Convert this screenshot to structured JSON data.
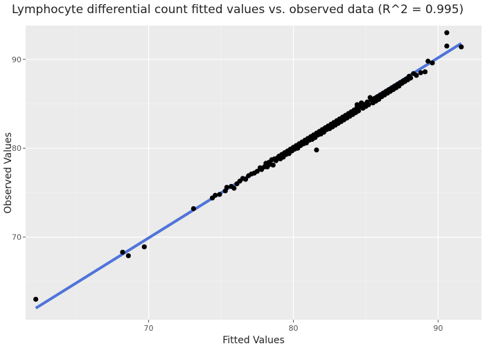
{
  "chart_data": {
    "type": "scatter",
    "title": "Lymphocyte differential count  fitted values vs. observed data (R^2 = 0.995)",
    "xlabel": "Fitted Values",
    "ylabel": "Observed Values",
    "xlim": [
      61.5,
      93.0
    ],
    "ylim": [
      60.7,
      93.8
    ],
    "xticks": [
      70,
      80,
      90
    ],
    "yticks": [
      70,
      80,
      90
    ],
    "grid": true,
    "background": "#ebebeb",
    "point_color": "#000000",
    "fit_color": "#4f74d9",
    "fit_line": {
      "x": [
        62.2,
        91.6
      ],
      "y": [
        62.0,
        91.8
      ]
    },
    "points": [
      [
        62.2,
        63.0
      ],
      [
        68.2,
        68.3
      ],
      [
        68.6,
        67.9
      ],
      [
        69.7,
        68.9
      ],
      [
        73.1,
        73.2
      ],
      [
        74.4,
        74.4
      ],
      [
        74.6,
        74.7
      ],
      [
        74.9,
        74.8
      ],
      [
        75.3,
        75.2
      ],
      [
        75.4,
        75.6
      ],
      [
        75.7,
        75.7
      ],
      [
        75.9,
        75.5
      ],
      [
        76.1,
        76.0
      ],
      [
        76.3,
        76.3
      ],
      [
        76.5,
        76.6
      ],
      [
        76.7,
        76.5
      ],
      [
        76.9,
        76.9
      ],
      [
        77.1,
        77.1
      ],
      [
        77.3,
        77.2
      ],
      [
        77.5,
        77.4
      ],
      [
        77.7,
        77.8
      ],
      [
        77.8,
        77.6
      ],
      [
        78.0,
        77.9
      ],
      [
        78.1,
        78.3
      ],
      [
        78.2,
        77.9
      ],
      [
        78.3,
        78.4
      ],
      [
        78.4,
        78.2
      ],
      [
        78.5,
        78.7
      ],
      [
        78.6,
        78.1
      ],
      [
        78.7,
        78.8
      ],
      [
        78.8,
        78.6
      ],
      [
        78.9,
        78.9
      ],
      [
        79.0,
        79.1
      ],
      [
        79.1,
        78.8
      ],
      [
        79.2,
        79.3
      ],
      [
        79.3,
        79.0
      ],
      [
        79.4,
        79.5
      ],
      [
        79.5,
        79.3
      ],
      [
        79.6,
        79.7
      ],
      [
        79.7,
        79.4
      ],
      [
        79.8,
        79.9
      ],
      [
        79.9,
        79.7
      ],
      [
        80.0,
        80.1
      ],
      [
        80.1,
        79.9
      ],
      [
        80.2,
        80.3
      ],
      [
        80.3,
        80.0
      ],
      [
        80.4,
        80.5
      ],
      [
        80.5,
        80.3
      ],
      [
        80.6,
        80.7
      ],
      [
        80.7,
        80.5
      ],
      [
        80.8,
        80.9
      ],
      [
        80.9,
        80.6
      ],
      [
        81.0,
        81.1
      ],
      [
        81.1,
        80.9
      ],
      [
        81.2,
        81.3
      ],
      [
        81.3,
        81.0
      ],
      [
        81.4,
        81.5
      ],
      [
        81.5,
        81.2
      ],
      [
        81.6,
        81.7
      ],
      [
        81.6,
        79.8
      ],
      [
        81.7,
        81.5
      ],
      [
        81.8,
        81.9
      ],
      [
        81.9,
        81.6
      ],
      [
        82.0,
        82.1
      ],
      [
        82.1,
        81.8
      ],
      [
        82.2,
        82.3
      ],
      [
        82.3,
        82.1
      ],
      [
        82.4,
        82.5
      ],
      [
        82.5,
        82.2
      ],
      [
        82.6,
        82.7
      ],
      [
        82.7,
        82.4
      ],
      [
        82.8,
        82.9
      ],
      [
        82.9,
        82.6
      ],
      [
        83.0,
        83.1
      ],
      [
        83.1,
        82.8
      ],
      [
        83.2,
        83.3
      ],
      [
        83.3,
        83.0
      ],
      [
        83.4,
        83.5
      ],
      [
        83.5,
        83.2
      ],
      [
        83.6,
        83.7
      ],
      [
        83.7,
        83.4
      ],
      [
        83.8,
        83.9
      ],
      [
        83.9,
        83.6
      ],
      [
        84.0,
        84.1
      ],
      [
        84.1,
        83.8
      ],
      [
        84.2,
        84.3
      ],
      [
        84.3,
        84.0
      ],
      [
        84.4,
        84.6
      ],
      [
        84.4,
        84.9
      ],
      [
        84.5,
        84.2
      ],
      [
        84.6,
        84.7
      ],
      [
        84.7,
        85.1
      ],
      [
        84.8,
        84.5
      ],
      [
        84.9,
        84.9
      ],
      [
        85.0,
        84.7
      ],
      [
        85.1,
        85.2
      ],
      [
        85.2,
        84.9
      ],
      [
        85.3,
        85.7
      ],
      [
        85.4,
        85.4
      ],
      [
        85.5,
        85.1
      ],
      [
        85.6,
        85.6
      ],
      [
        85.7,
        85.3
      ],
      [
        85.8,
        85.8
      ],
      [
        85.9,
        85.5
      ],
      [
        86.0,
        86.0
      ],
      [
        86.1,
        85.8
      ],
      [
        86.2,
        86.2
      ],
      [
        86.3,
        86.0
      ],
      [
        86.4,
        86.4
      ],
      [
        86.5,
        86.2
      ],
      [
        86.6,
        86.6
      ],
      [
        86.7,
        86.4
      ],
      [
        86.8,
        86.8
      ],
      [
        86.9,
        86.6
      ],
      [
        87.0,
        87.0
      ],
      [
        87.1,
        86.8
      ],
      [
        87.2,
        87.2
      ],
      [
        87.3,
        87.0
      ],
      [
        87.4,
        87.4
      ],
      [
        87.5,
        87.3
      ],
      [
        87.6,
        87.6
      ],
      [
        87.7,
        87.5
      ],
      [
        87.8,
        87.8
      ],
      [
        87.9,
        87.7
      ],
      [
        88.0,
        88.1
      ],
      [
        88.1,
        87.9
      ],
      [
        88.3,
        88.4
      ],
      [
        88.5,
        88.2
      ],
      [
        88.8,
        88.5
      ],
      [
        89.1,
        88.6
      ],
      [
        89.3,
        89.8
      ],
      [
        89.6,
        89.6
      ],
      [
        90.6,
        93.0
      ],
      [
        90.6,
        91.5
      ],
      [
        91.6,
        91.4
      ]
    ]
  }
}
